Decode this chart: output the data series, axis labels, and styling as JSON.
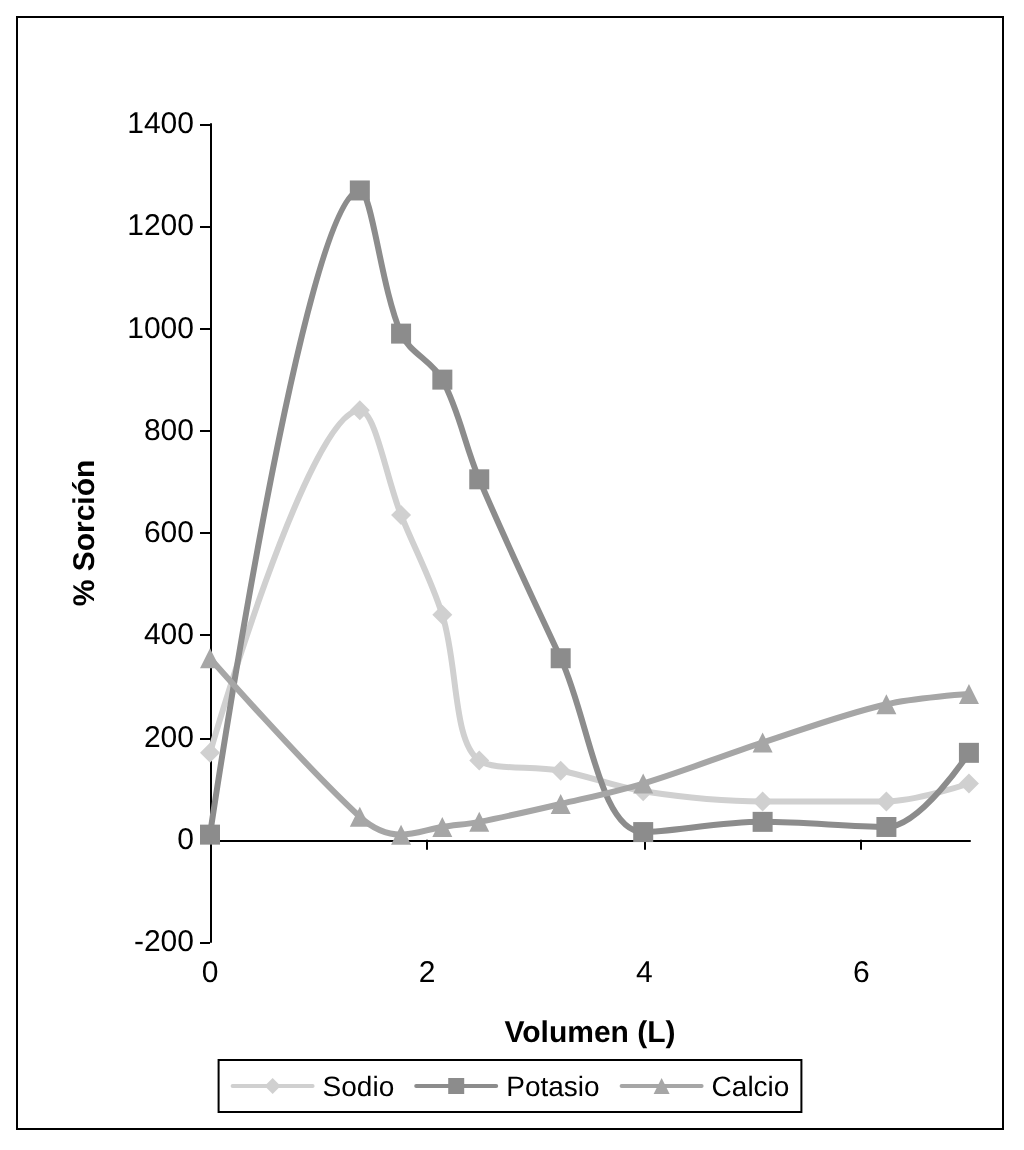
{
  "chart_data": {
    "type": "line",
    "xlabel": "Volumen (L)",
    "ylabel": "% Sorción",
    "x": [
      0,
      1.38,
      1.76,
      2.14,
      2.48,
      3.23,
      3.99,
      5.09,
      6.23,
      6.99
    ],
    "series": [
      {
        "name": "Sodio",
        "color": "#d0d0d0",
        "marker": "diamond",
        "values": [
          170,
          840,
          635,
          440,
          155,
          135,
          95,
          75,
          75,
          110
        ]
      },
      {
        "name": "Potasio",
        "color": "#8c8c8c",
        "marker": "square",
        "values": [
          10,
          1270,
          990,
          900,
          705,
          355,
          15,
          35,
          25,
          170
        ]
      },
      {
        "name": "Calcio",
        "color": "#a6a6a6",
        "marker": "triangle",
        "values": [
          355,
          45,
          10,
          25,
          35,
          70,
          110,
          190,
          265,
          285
        ]
      }
    ],
    "xlim": [
      0,
      7
    ],
    "xticks": [
      0,
      2,
      4,
      6
    ],
    "ylim": [
      -200,
      1400
    ],
    "yticks": [
      -200,
      0,
      200,
      400,
      600,
      800,
      1000,
      1200,
      1400
    ],
    "legend": "bottom",
    "line_style": "solid"
  }
}
